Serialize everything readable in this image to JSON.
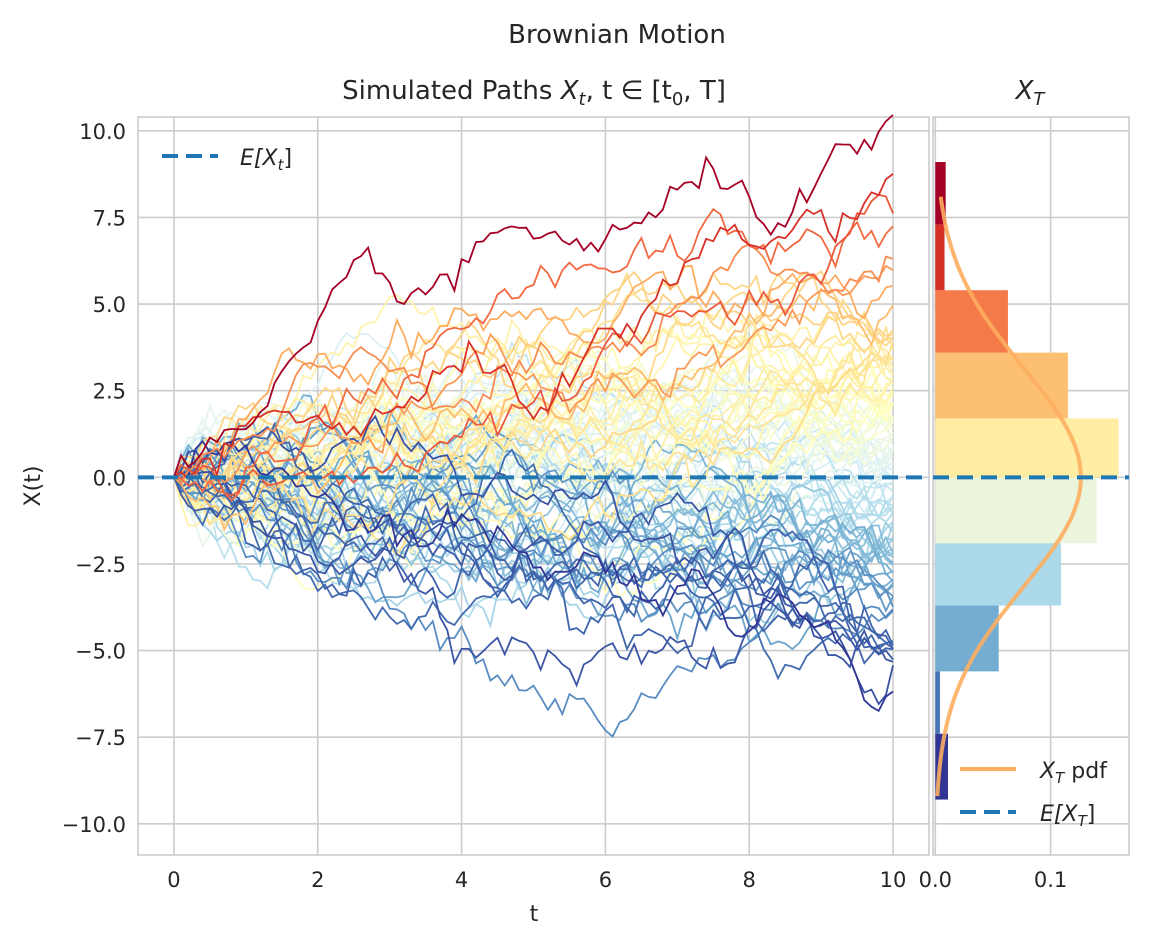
{
  "figure": {
    "suptitle": "Brownian Motion",
    "main_title_prefix": "Simulated Paths ",
    "main_title_math": "X",
    "main_title_sub": "t",
    "main_title_rest": ", t ∈ [t",
    "main_title_sub0": "0",
    "main_title_end": ", T]",
    "hist_title": "X",
    "hist_title_sub": "T",
    "xlabel": "t",
    "ylabel": "X(t)",
    "legend_main": {
      "label": "E[X",
      "sub": "t",
      "end": "]"
    },
    "legend_hist": [
      {
        "label": "X",
        "sub": "T",
        "end": " pdf"
      },
      {
        "label": "E[X",
        "sub": "T",
        "end": "]"
      }
    ]
  },
  "chart_data": [
    {
      "type": "line",
      "title": "Simulated Paths X_t, t ∈ [t_0, T]",
      "xlabel": "t",
      "ylabel": "X(t)",
      "xlim": [
        -0.5,
        10.5
      ],
      "ylim": [
        -10.9,
        10.4
      ],
      "xticks": [
        0,
        2,
        4,
        6,
        8,
        10
      ],
      "yticks": [
        10.0,
        7.5,
        5.0,
        2.5,
        0.0,
        -2.5,
        -5.0,
        -7.5,
        -10.0
      ],
      "ytick_labels": [
        "10.0",
        "7.5",
        "5.0",
        "2.5",
        "0.0",
        "−2.5",
        "−5.0",
        "−7.5",
        "−10.0"
      ],
      "grid": true,
      "legend_position": "upper-left",
      "n_paths": 100,
      "t_start": 0,
      "t_end": 10,
      "steps": 100,
      "path_colormap": [
        "#313695",
        "#4575b4",
        "#74add1",
        "#abd9e9",
        "#e0f3f8",
        "#ffffbf",
        "#fee090",
        "#fdae61",
        "#f46d43",
        "#d73027",
        "#a50026"
      ],
      "mean_line": {
        "name": "E[X_t]",
        "value": 0.0,
        "color": "#1f77b4",
        "style": "dashed"
      }
    },
    {
      "type": "bar",
      "orientation": "horizontal",
      "title": "X_T",
      "xlim": [
        -0.002,
        0.168
      ],
      "xticks": [
        0.0,
        0.1
      ],
      "xtick_labels": [
        "0.0",
        "0.1"
      ],
      "bins": [
        {
          "y0": -9.3,
          "y1": -7.4,
          "density": 0.011,
          "color": "#313695"
        },
        {
          "y0": -7.4,
          "y1": -5.6,
          "density": 0.004,
          "color": "#4575b4"
        },
        {
          "y0": -5.6,
          "y1": -3.7,
          "density": 0.055,
          "color": "#74add1"
        },
        {
          "y0": -3.7,
          "y1": -1.9,
          "density": 0.109,
          "color": "#abd9e9"
        },
        {
          "y0": -1.9,
          "y1": 0.0,
          "density": 0.14,
          "color": "#eaf5dc"
        },
        {
          "y0": 0.0,
          "y1": 1.7,
          "density": 0.159,
          "color": "#feeda2"
        },
        {
          "y0": 1.7,
          "y1": 3.6,
          "density": 0.115,
          "color": "#fdbf71"
        },
        {
          "y0": 3.6,
          "y1": 5.4,
          "density": 0.063,
          "color": "#f57a4a"
        },
        {
          "y0": 5.4,
          "y1": 7.3,
          "density": 0.008,
          "color": "#d73027"
        },
        {
          "y0": 7.3,
          "y1": 9.1,
          "density": 0.009,
          "color": "#a50026"
        }
      ],
      "pdf": {
        "name": "X_T pdf",
        "distribution": "normal",
        "mean": 0.0,
        "std": 3.16,
        "y_range": [
          -9.2,
          8.1
        ],
        "color": "#fdae61"
      },
      "mean_line": {
        "name": "E[X_T]",
        "value": 0.0,
        "color": "#1f77b4",
        "style": "dashed"
      },
      "legend_position": "lower-right"
    }
  ]
}
